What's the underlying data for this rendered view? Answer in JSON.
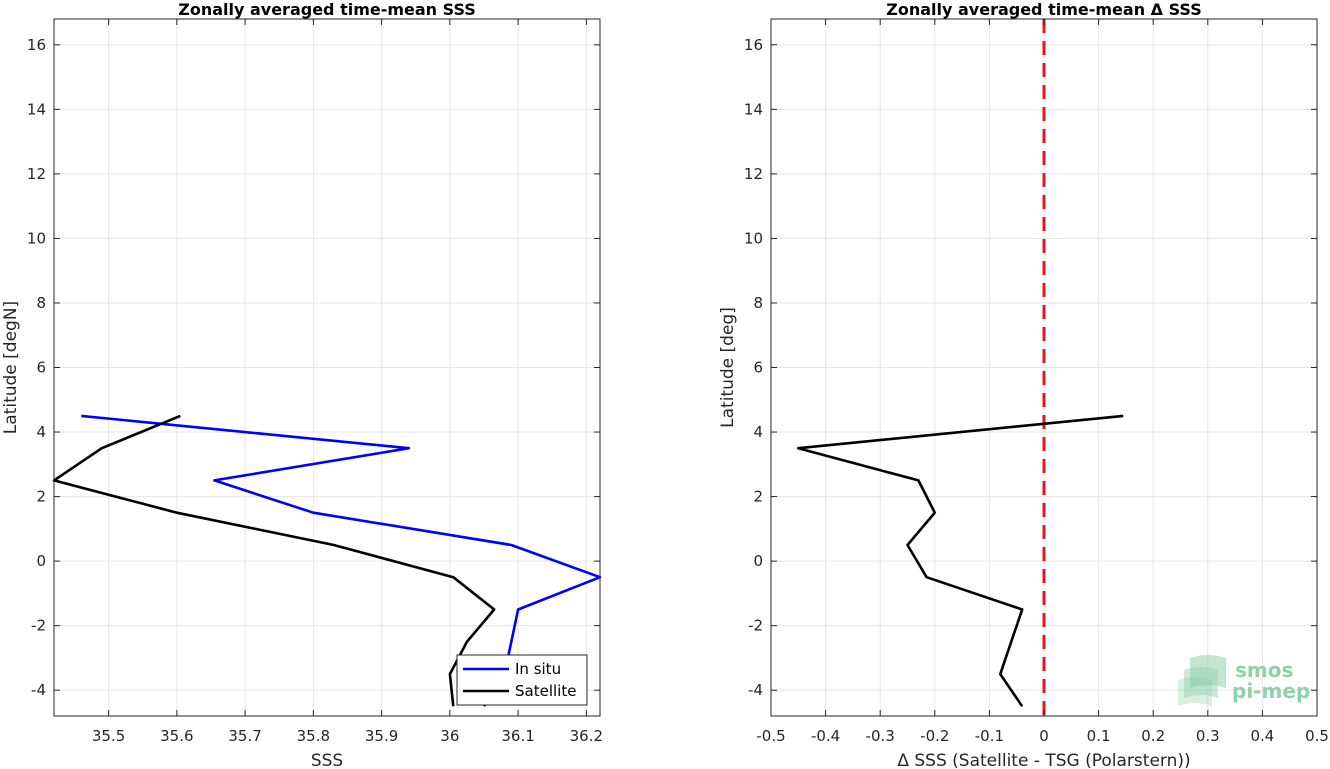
{
  "chart_data": [
    {
      "type": "line",
      "title": "Zonally averaged time-mean SSS",
      "xlabel": "SSS",
      "ylabel": "Latitude [degN]",
      "xlim": [
        35.42,
        36.22
      ],
      "ylim": [
        -4.8,
        16.8
      ],
      "xticks": [
        35.5,
        35.6,
        35.7,
        35.8,
        35.9,
        36,
        36.1,
        36.2
      ],
      "xtick_labels": [
        "35.5",
        "35.6",
        "35.7",
        "35.8",
        "35.9",
        "36",
        "36.1",
        "36.2"
      ],
      "yticks": [
        -4,
        -2,
        0,
        2,
        4,
        6,
        8,
        10,
        12,
        14,
        16
      ],
      "ytick_labels": [
        "-4",
        "-2",
        "0",
        "2",
        "4",
        "6",
        "8",
        "10",
        "12",
        "14",
        "16"
      ],
      "grid": true,
      "legend_position": "bottom-right",
      "series": [
        {
          "name": "In situ",
          "color": "#0000ff",
          "points": [
            [
              35.46,
              4.5
            ],
            [
              35.94,
              3.5
            ],
            [
              35.655,
              2.5
            ],
            [
              35.8,
              1.5
            ],
            [
              36.09,
              0.5
            ],
            [
              36.22,
              -0.5
            ],
            [
              36.1,
              -1.5
            ],
            [
              36.09,
              -2.5
            ],
            [
              36.08,
              -3.5
            ],
            [
              36.05,
              -4.5
            ]
          ]
        },
        {
          "name": "Satellite",
          "color": "#000000",
          "points": [
            [
              35.605,
              4.5
            ],
            [
              35.49,
              3.5
            ],
            [
              35.42,
              2.5
            ],
            [
              35.6,
              1.5
            ],
            [
              35.83,
              0.5
            ],
            [
              36.005,
              -0.5
            ],
            [
              36.065,
              -1.5
            ],
            [
              36.025,
              -2.5
            ],
            [
              36,
              -3.5
            ],
            [
              36.005,
              -4.5
            ]
          ]
        }
      ]
    },
    {
      "type": "line",
      "title": "Zonally averaged time-mean Δ SSS",
      "xlabel": "Δ SSS (Satellite - TSG (Polarstern))",
      "ylabel": "Latitude [deg]",
      "xlim": [
        -0.5,
        0.5
      ],
      "ylim": [
        -4.8,
        16.8
      ],
      "xticks": [
        -0.5,
        -0.4,
        -0.3,
        -0.2,
        -0.1,
        0,
        0.1,
        0.2,
        0.3,
        0.4,
        0.5
      ],
      "xtick_labels": [
        "-0.5",
        "-0.4",
        "-0.3",
        "-0.2",
        "-0.1",
        "0",
        "0.1",
        "0.2",
        "0.3",
        "0.4",
        "0.5"
      ],
      "yticks": [
        -4,
        -2,
        0,
        2,
        4,
        6,
        8,
        10,
        12,
        14,
        16
      ],
      "ytick_labels": [
        "-4",
        "-2",
        "0",
        "2",
        "4",
        "6",
        "8",
        "10",
        "12",
        "14",
        "16"
      ],
      "grid": true,
      "reference_line": {
        "x": 0,
        "color": "#e31a1c",
        "style": "dashed"
      },
      "series": [
        {
          "color": "#000000",
          "points": [
            [
              0.145,
              4.5
            ],
            [
              -0.45,
              3.5
            ],
            [
              -0.23,
              2.5
            ],
            [
              -0.2,
              1.5
            ],
            [
              -0.25,
              0.5
            ],
            [
              -0.215,
              -0.5
            ],
            [
              -0.04,
              -1.5
            ],
            [
              -0.06,
              -2.5
            ],
            [
              -0.08,
              -3.5
            ],
            [
              -0.04,
              -4.5
            ]
          ]
        }
      ]
    }
  ],
  "logo": {
    "line1": "smos",
    "line2": "pi-mep",
    "color": "#8fd1aa"
  }
}
